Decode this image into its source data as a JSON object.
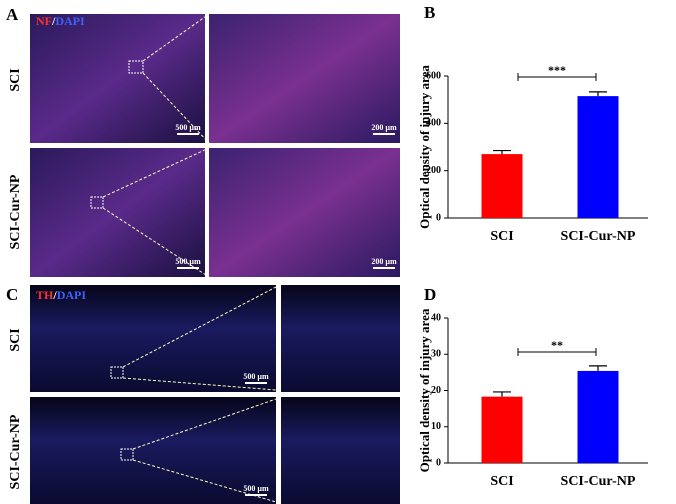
{
  "figure": {
    "panel_a": {
      "letter": "A",
      "stain": [
        "NF",
        "/",
        "DAPI"
      ],
      "rows": [
        "SCI",
        "SCI-Cur-NP"
      ],
      "scale_bars": [
        "500 µm",
        "200 µm"
      ]
    },
    "panel_c": {
      "letter": "C",
      "stain": [
        "TH",
        "/",
        "DAPI"
      ],
      "rows": [
        "SCI",
        "SCI-Cur-NP"
      ],
      "scale_bars": [
        "500 µm"
      ]
    }
  },
  "chart_data": [
    {
      "type": "bar",
      "panel_label": "B",
      "ylabel": "Optical density of injury area",
      "categories": [
        "SCI",
        "SCI-Cur-NP"
      ],
      "values": [
        270,
        515
      ],
      "errors": [
        15,
        18
      ],
      "colors": [
        "#ff0000",
        "#0000ff"
      ],
      "ylim": [
        0,
        600
      ],
      "yticks": [
        0,
        200,
        400,
        600
      ],
      "significance": "***"
    },
    {
      "type": "bar",
      "panel_label": "D",
      "ylabel": "Optical density of injury area",
      "categories": [
        "SCI",
        "SCI-Cur-NP"
      ],
      "values": [
        18.3,
        25.4
      ],
      "errors": [
        1.3,
        1.4
      ],
      "colors": [
        "#ff0000",
        "#0000ff"
      ],
      "ylim": [
        0,
        40
      ],
      "yticks": [
        0,
        10,
        20,
        30,
        40
      ],
      "significance": "**"
    }
  ]
}
